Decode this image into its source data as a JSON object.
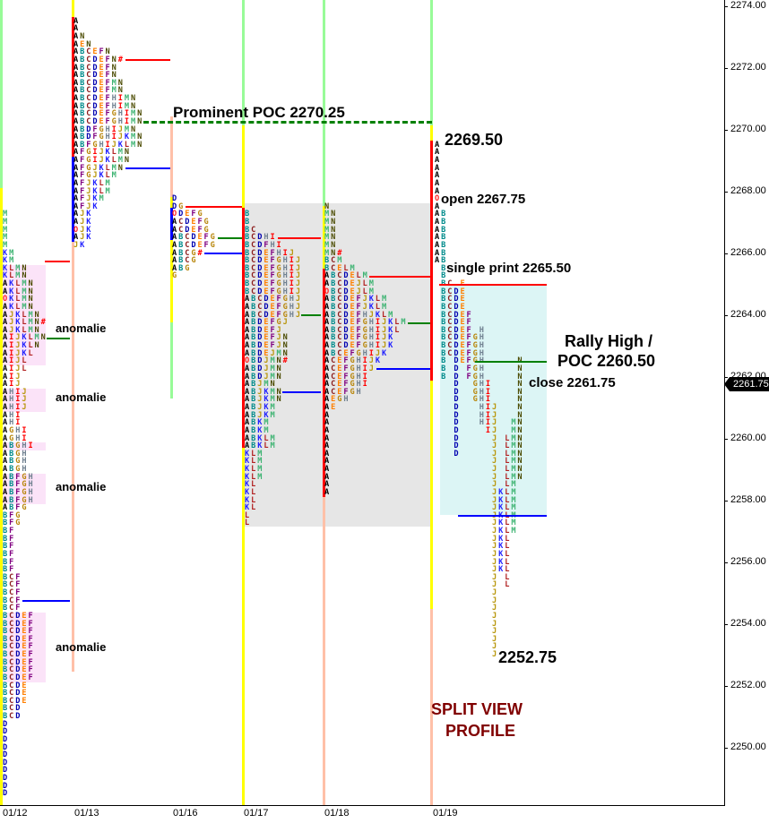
{
  "chart_data": {
    "type": "market-profile",
    "title": "",
    "tick_size": 0.25,
    "y_axis": {
      "range": [
        2248.25,
        2274.25
      ],
      "ticks": [
        "2274.00",
        "2272.00",
        "2270.00",
        "2268.00",
        "2266.00",
        "2264.00",
        "2262.00",
        "2260.00",
        "2258.00",
        "2256.00",
        "2254.00",
        "2252.00",
        "2250.00"
      ],
      "position": "right"
    },
    "last_price": "2261.75",
    "letter_colors": {
      "A": "#000000",
      "B": "#008b8b",
      "C": "#8b1a1a",
      "D": "#0000b0",
      "E": "#ff8000",
      "F": "#800080",
      "G": "#b8860b",
      "H": "#708090",
      "I": "#ff0000",
      "J": "#b8960b",
      "K": "#1e1eff",
      "L": "#b22222",
      "M": "#3cb371",
      "N": "#4a4a00",
      "O": "#ff2020",
      "#": "#ff0000"
    },
    "marker_colors": {
      "high": "#ff0000",
      "poc": "#008000",
      "low": "#0000ff"
    },
    "profiles": [
      {
        "date": "01/12",
        "top_price": 2267.25,
        "rows": [
          "M",
          "M",
          "M",
          "M",
          "M",
          "KM",
          "KM",
          "KLMN",
          "KLMN",
          "AKLMN",
          "AKLMN",
          "OKLMN",
          "AKLMN",
          "AJKLMN",
          "AJKLMN#",
          "AJKLMN",
          "AIJKLMN",
          "AIJKLN",
          "AIJKL",
          "AIJL",
          "AIJL",
          "AIJ",
          "AIJ",
          "AHIJ",
          "AHIJ",
          "AHIJ",
          "AHI",
          "AHI",
          "AGHI",
          "AGHI",
          "ABGHI",
          "ABGH",
          "ABGH",
          "ABGH",
          "ABFGH",
          "ABFGH",
          "ABFGH",
          "ABFGH",
          "ABFG",
          "BFG",
          "BFG",
          "BF",
          "BF",
          "BF",
          "BF",
          "BF",
          "BF",
          "BCF",
          "BCF",
          "BCF",
          "BCF",
          "BCF",
          "BCDEF",
          "BCDEF",
          "BCDEF",
          "BCDEF",
          "BCDEF",
          "BCDEF",
          "BCDEF",
          "BCDEF",
          "BCDEF",
          "BCDE",
          "BCDE",
          "BCDE",
          "BCD",
          "BCD",
          "D",
          "D",
          "D",
          "D",
          "D",
          "D",
          "D",
          "D",
          "D",
          "D"
        ],
        "levels": {
          "high": 2265.75,
          "poc": 2263.25,
          "low": 2254.75
        }
      },
      {
        "date": "01/13",
        "top_price": 2273.5,
        "rows": [
          "A",
          "A",
          "AN",
          "AEN",
          "ABCEFN",
          "ABCDEFN#",
          "ABCDEFN",
          "ABCDEFN",
          "ABCDEFMN",
          "ABCDEFMN",
          "ABCDEFHIMN",
          "ABCDEFHIMN",
          "ABCDEFGHIMN",
          "ABCDEFGHIMN",
          "ABDFGHIJMN",
          "ABDFGHIJKMN",
          "ABFGHIJKLMN",
          "AFGIJKLMN",
          "AFGIJKLMN",
          "AFGJKLMN",
          "AFGJKLM",
          "AFJKLM",
          "AFJKLM",
          "AFJKM",
          "AFJK",
          "AJK",
          "AJK",
          "OJK",
          "AJK",
          "JK"
        ],
        "levels": {
          "high": 2272.25,
          "poc": 2270.25,
          "low": 2268.75
        }
      },
      {
        "date": "01/16",
        "top_price": 2267.75,
        "rows": [
          "D",
          "DG",
          "ODEFG",
          "ACDEFG",
          "ACDEFG",
          "ABCDEFG",
          "ABCDEFG",
          "ABCG#",
          "ABCG",
          "ABG",
          "G"
        ],
        "levels": {
          "high": 2267.5,
          "poc": 2266.5,
          "low": 2266.0
        }
      },
      {
        "date": "01/17",
        "top_price": 2267.25,
        "rows": [
          "B",
          "B",
          "BC",
          "BCDHI",
          "BCDFHI",
          "BCDEFHIJ",
          "BCDEFGHIJ",
          "BCDEFGHIJ",
          "BCDEFGHIJ",
          "BCDEFGHIJ",
          "BCDEFGHIJ",
          "ABCDEFGHJ",
          "ABCDEFGHJ",
          "ABCDEFGHJ",
          "ABDEFGJ",
          "ABDEFJ",
          "ABDEFJN",
          "ABDEFJN",
          "ABDEJMN",
          "OBDJMN#",
          "ABDJMN",
          "ABDJMN",
          "ABJMN",
          "ABJKMN",
          "ABJKMN",
          "ABJKM",
          "ABJKM",
          "ABKM",
          "ABKM",
          "ABKLM",
          "ABKLM",
          "KLM",
          "KLM",
          "KLM",
          "KLM",
          "KL",
          "KL",
          "KL",
          "KL",
          "L",
          "L"
        ],
        "levels": {
          "high": 2266.5,
          "poc": 2264.0,
          "low": 2261.5
        }
      },
      {
        "date": "01/18",
        "top_price": 2267.5,
        "rows": [
          "N",
          "MN",
          "MN",
          "MN",
          "MN",
          "MN",
          "MN#",
          "BCM",
          "BCELM",
          "ABCDELM",
          "ABCDEJLM",
          "OBCDEJLM",
          "ABCDEFJKLM",
          "ABCDEFJKLM",
          "ABCDEFHJKLM",
          "ABCDEFGHIJKLM",
          "ABCDEFGHIJKL",
          "ABCDEFGHIJK",
          "ABCDEFGHIJK",
          "ABCEFGHIJK",
          "ACEFGHIJK",
          "ACEFGHIJ",
          "ACEFGHI",
          "ACEFGHI",
          "ACEFGH",
          "AEGH",
          "AE",
          "A",
          "A",
          "A",
          "A",
          "A",
          "A",
          "A",
          "A",
          "A",
          "A",
          "A"
        ],
        "levels": {
          "high": 2265.25,
          "poc": 2263.75,
          "low": 2262.25
        }
      },
      {
        "date": "01/19",
        "top_price": 2269.5,
        "split_view": true,
        "rows": [
          "A",
          "A",
          "A",
          "A",
          "A",
          "A",
          "A",
          "O",
          "A",
          "AB",
          "AB",
          "AB",
          "AB",
          "AB",
          "AB",
          "AB",
          " B",
          " B",
          " BC E",
          " BCDE",
          " BCDE",
          " BCDE",
          " BCDEF",
          " BCDEF",
          " BCDEF H",
          " BCDEFGH",
          " BCDEFGH",
          " BCDEFGH",
          " B DEFGH     N",
          " B D FGH     N",
          " B D FGH     N",
          "   D  GHI    N",
          "   D  GHI    N",
          "   D  GHI    N",
          "   D   HIJ   N",
          "   D   HIJ   N",
          "   D   HIJ  MN",
          "   D    IJ  MN",
          "   D     J LMN",
          "   D     J LMN",
          "   D     J LMN",
          "         J LMN",
          "         J LMN",
          "         J LMN",
          "         J LM",
          "         JKLM",
          "         JKLM",
          "         JKLM",
          "         JKLM",
          "         JKLM",
          "         JKLM",
          "         JKL",
          "         JKL",
          "         JKL",
          "         JKL",
          "         JKL",
          "         J L",
          "         J L",
          "         J",
          "         J",
          "         J",
          "         J",
          "         J",
          "         J",
          "         J",
          "         J",
          "         J"
        ],
        "levels": {
          "high": 2265.0,
          "poc": 2262.5,
          "low": 2257.5
        }
      }
    ],
    "annotations": {
      "prominent_poc": "Prominent POC 2270.25",
      "high": "2269.50",
      "open": "open 2267.75",
      "single_print": "single print 2265.50",
      "rally_high_1": "Rally High /",
      "rally_high_2": "POC 2260.50",
      "close": "close 2261.75",
      "low": "2252.75",
      "split_1": "SPLIT VIEW",
      "split_2": "PROFILE",
      "anomalie": [
        "anomalie",
        "anomalie",
        "anomalie",
        "anomalie"
      ]
    },
    "accent_colors": {
      "split_label": "#800000",
      "value_area": "#e6e6e6",
      "split_area": "#dcf5f5",
      "anomaly": "#fbe3f8"
    }
  }
}
